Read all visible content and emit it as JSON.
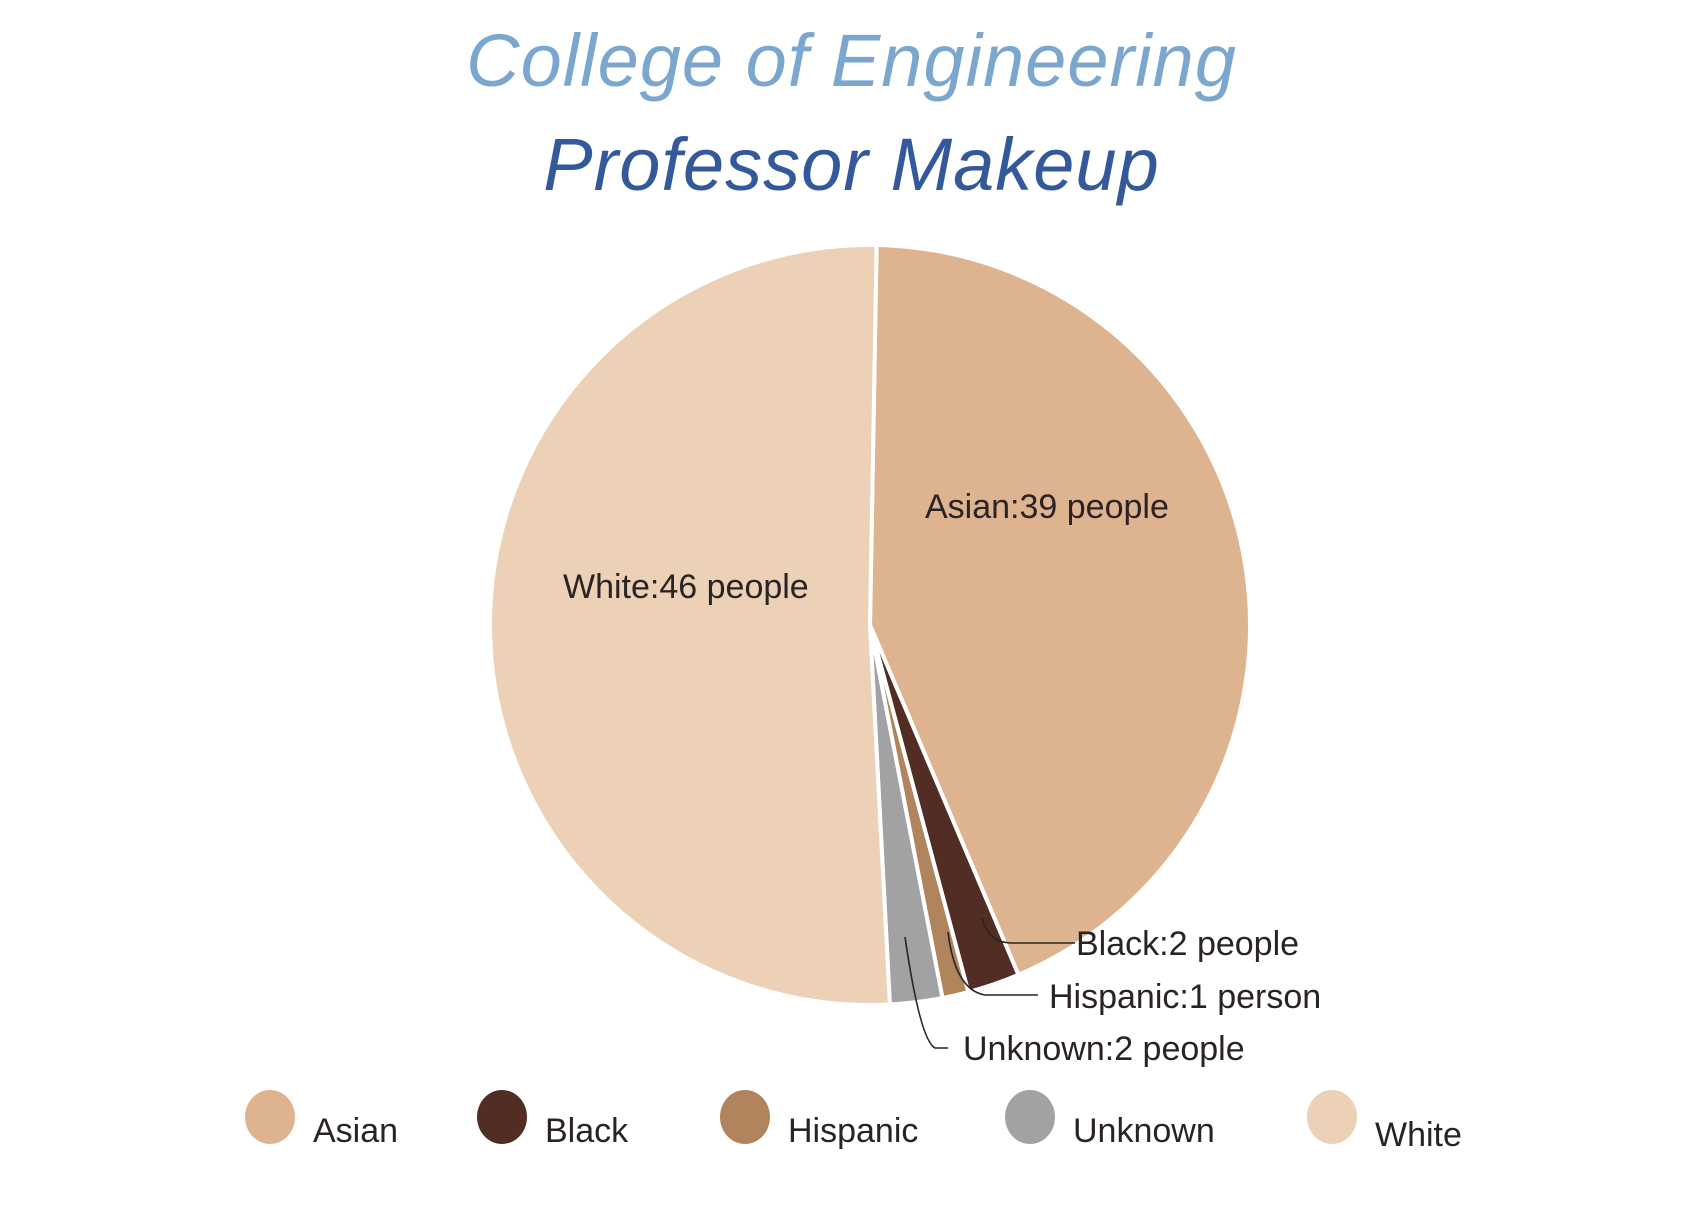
{
  "title": {
    "line1": "College of Engineering",
    "line2": "Professor Makeup"
  },
  "slice_labels": {
    "asian": "Asian:39 people",
    "white": "White:46 people",
    "black": "Black:2 people",
    "hispanic": "Hispanic:1 person",
    "unknown": "Unknown:2 people"
  },
  "legend": [
    {
      "label": "Asian",
      "color": "#deb490"
    },
    {
      "label": "Black",
      "color": "#512d23"
    },
    {
      "label": "Hispanic",
      "color": "#b0845d"
    },
    {
      "label": "Unknown",
      "color": "#a2a2a4"
    },
    {
      "label": "White",
      "color": "#ecd1b6"
    }
  ],
  "chart_data": {
    "type": "pie",
    "title": "College of Engineering Professor Makeup",
    "categories": [
      "Asian",
      "Black",
      "Hispanic",
      "Unknown",
      "White"
    ],
    "values": [
      39,
      2,
      1,
      2,
      46
    ],
    "units": [
      "people",
      "people",
      "person",
      "people",
      "people"
    ],
    "colors": [
      "#deb490",
      "#512d23",
      "#b0845d",
      "#a2a2a4",
      "#ecd1b6"
    ],
    "legend_position": "bottom",
    "start_angle_deg": 1,
    "direction": "clockwise"
  }
}
